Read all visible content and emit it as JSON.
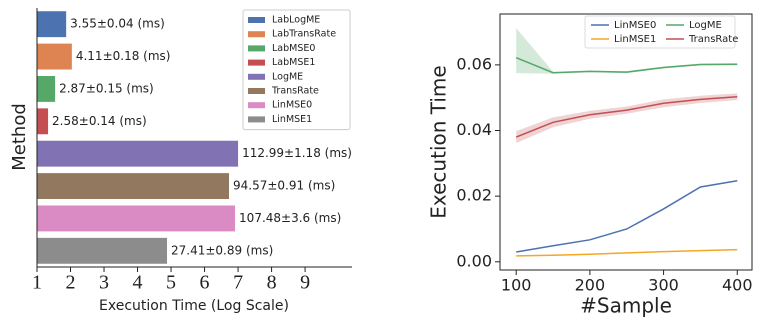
{
  "chart_data": [
    {
      "type": "bar",
      "orientation": "horizontal",
      "x_label": "Execution Time (Log Scale)",
      "y_label": "Method",
      "categories": [
        "LabLogME",
        "LabTransRate",
        "LabMSE0",
        "LabMSE1",
        "LogME",
        "TransRate",
        "LinMSE0",
        "LinMSE1"
      ],
      "values": [
        1.87,
        2.04,
        1.54,
        1.33,
        7.0,
        6.73,
        6.91,
        4.88
      ],
      "bar_labels": [
        "3.55±0.04 (ms)",
        "4.11±0.18 (ms)",
        "2.87±0.15 (ms)",
        "2.58±0.14 (ms)",
        "112.99±1.18 (ms)",
        "94.57±0.91 (ms)",
        "107.48±3.6 (ms)",
        "27.41±0.89 (ms)"
      ],
      "colors": [
        "#4c72b0",
        "#dd8452",
        "#55a868",
        "#c44e52",
        "#8172b3",
        "#937860",
        "#da8bc3",
        "#8c8c8c"
      ],
      "xlim": [
        1,
        10.4
      ],
      "xticks": [
        1,
        2,
        3,
        4,
        5,
        6,
        7,
        8,
        9
      ],
      "legend": "upper right"
    },
    {
      "type": "line",
      "x_label": "#Sample",
      "y_label": "Execution Time",
      "x": [
        100,
        150,
        200,
        250,
        300,
        350,
        400
      ],
      "series": [
        {
          "name": "LinMSE0",
          "color": "#4c72b0",
          "values": [
            0.003,
            0.0049,
            0.0067,
            0.01,
            0.0161,
            0.0228,
            0.0247
          ]
        },
        {
          "name": "LinMSE1",
          "color": "#f5a623",
          "values": [
            0.0018,
            0.002,
            0.0023,
            0.0027,
            0.0031,
            0.0034,
            0.0037
          ]
        },
        {
          "name": "LogME",
          "color": "#55a868",
          "values": [
            0.0622,
            0.0576,
            0.058,
            0.0578,
            0.0592,
            0.0601,
            0.0602
          ],
          "lower": [
            0.0575,
            0.0573,
            0.0577,
            0.0575,
            0.0589,
            0.0598,
            0.0599
          ],
          "upper": [
            0.0712,
            0.0579,
            0.0583,
            0.0581,
            0.0595,
            0.0604,
            0.0605
          ]
        },
        {
          "name": "TransRate",
          "color": "#c44e52",
          "values": [
            0.038,
            0.0425,
            0.0448,
            0.0462,
            0.0483,
            0.0495,
            0.0503
          ],
          "lower": [
            0.0362,
            0.041,
            0.0436,
            0.0451,
            0.0471,
            0.0484,
            0.0493
          ],
          "upper": [
            0.0398,
            0.044,
            0.046,
            0.0473,
            0.0495,
            0.0506,
            0.0513
          ]
        }
      ],
      "xlim": [
        78,
        420
      ],
      "xticks": [
        100,
        200,
        300,
        400
      ],
      "ylim": [
        -0.0025,
        0.0755
      ],
      "yticks": [
        {
          "value": 0,
          "label": "0.00"
        },
        {
          "value": 0.02,
          "label": "0.02"
        },
        {
          "value": 0.04,
          "label": "0.04"
        },
        {
          "value": 0.06,
          "label": "0.06"
        }
      ],
      "legend": "upper center"
    }
  ]
}
